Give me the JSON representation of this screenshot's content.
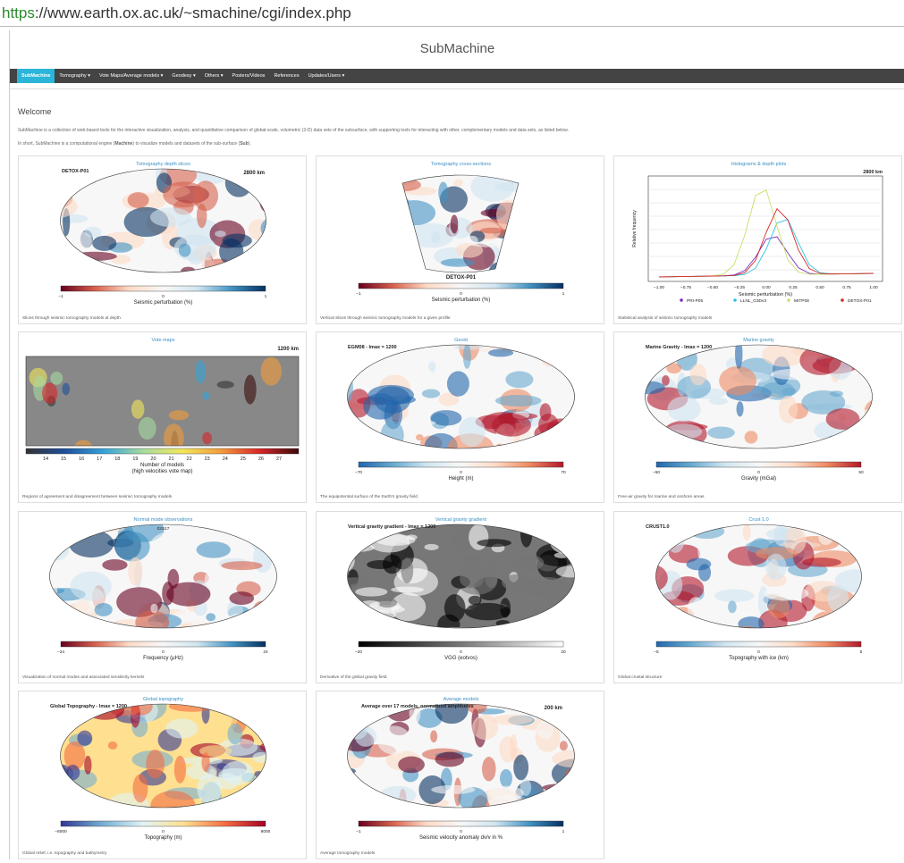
{
  "browser": {
    "url_scheme": "https",
    "url_rest": "://www.earth.ox.ac.uk/~smachine/cgi/index.php"
  },
  "header": {
    "title": "SubMachine"
  },
  "nav": {
    "items": [
      "SubMachine",
      "Tomography ▾",
      "Vote Maps/Average models ▾",
      "Geodesy ▾",
      "Others ▾",
      "Posters/Videos",
      "References",
      "Updates/Users ▾"
    ]
  },
  "welcome": {
    "heading": "Welcome",
    "paragraph_1": "SubMachine is a collection of web-based tools for the interactive visualization, analysis, and quantitative comparison of global-scale, volumetric (3-D) data sets of the subsurface, with supporting tools for interacting with other, complementary models and data sets, as listed below.",
    "paragraph_2": [
      "In short, SubMachine is a computational engine (",
      "Machine",
      ") to visualize models and datasets of the sub-surface (",
      "Sub",
      ")."
    ]
  },
  "cards": [
    {
      "title": "Tomography depth slices",
      "map_title": "DETOX-P01",
      "map_note": "2800 km",
      "colorbar_label": [
        "Seismic perturbation (%)"
      ],
      "colorbar_ticks": [
        "−1",
        "0",
        "1"
      ],
      "caption": "Slices through seismic tomography models at depth"
    },
    {
      "title": "Tomography cross-sections",
      "map_title": "DETOX-P01",
      "colorbar_label": [
        "Seismic perturbation (%)"
      ],
      "colorbar_ticks": [
        "−1",
        "0",
        "1"
      ],
      "caption": "Vertical slices through seismic tomography models for a given profile"
    },
    {
      "title": "Histograms & depth plots",
      "map_note": "2800 km",
      "y_label": "Relative frequency",
      "x_label": "Seismic perturbation (%)",
      "x_ticks": [
        "−1.00",
        "−0.75",
        "−0.50",
        "−0.25",
        "0.00",
        "0.25",
        "0.50",
        "0.75",
        "1.00"
      ],
      "legend": [
        "PRI-P05",
        "LLNL_G3Dv3",
        "MITP08",
        "DETOX-P01"
      ],
      "caption": "Statistical analysis of seismic tomography models"
    },
    {
      "title": "Vote maps",
      "map_note": "1200 km",
      "colorbar_label": [
        "Number of models",
        "(high velocities vote map)"
      ],
      "colorbar_ticks": [
        "14",
        "15",
        "16",
        "17",
        "18",
        "19",
        "20",
        "21",
        "22",
        "23",
        "24",
        "25",
        "26",
        "27"
      ],
      "caption": "Regions of agreement and disagreement between seismic tomography models"
    },
    {
      "title": "Geoid",
      "map_title": "EGM08 - lmax = 1200",
      "colorbar_label": [
        "Height (m)"
      ],
      "colorbar_ticks": [
        "−70",
        "0",
        "70"
      ],
      "caption": "The equipotential surface of the Earth's gravity field"
    },
    {
      "title": "Marine gravity",
      "map_title": "Marine Gravity - lmax = 1200",
      "colorbar_label": [
        "Gravity (mGal)"
      ],
      "colorbar_ticks": [
        "−50",
        "0",
        "50"
      ],
      "caption": "Free-air gravity for marine and onshore areas"
    },
    {
      "title": "Normal mode observations",
      "map_title": "02S17",
      "colorbar_label": [
        "Frequency (μHz)"
      ],
      "colorbar_ticks": [
        "−24",
        "0",
        "24"
      ],
      "caption": "Visualization of normal modes and associated sensitivity kernels"
    },
    {
      "title": "Vertical gravity gradient",
      "map_title": "Vertical gravity gradient - lmax = 1200",
      "colorbar_label": [
        "VGG (eotvos)"
      ],
      "colorbar_ticks": [
        "−20",
        "0",
        "20"
      ],
      "caption": "Derivative of the global gravity field"
    },
    {
      "title": "Crust 1.0",
      "map_title": "CRUST1.0",
      "colorbar_label": [
        "Topography with ice (km)"
      ],
      "colorbar_ticks": [
        "−5",
        "0",
        "5"
      ],
      "caption": "Global crustal structure"
    },
    {
      "title": "Global topography",
      "map_title": "Global Topography - lmax = 1200",
      "colorbar_label": [
        "Topography (m)"
      ],
      "colorbar_ticks": [
        "−8000",
        "0",
        "8000"
      ],
      "caption": "Global relief, i.e. topography and bathymetry"
    },
    {
      "title": "Average models",
      "map_title": "Average over 17 models, normalized amplitudes",
      "map_note": "200 km",
      "colorbar_label": [
        "Seismic velocity anomaly dv/v in %"
      ],
      "colorbar_ticks": [
        "−1",
        "0",
        "1"
      ],
      "caption": "Average tomography models"
    }
  ]
}
